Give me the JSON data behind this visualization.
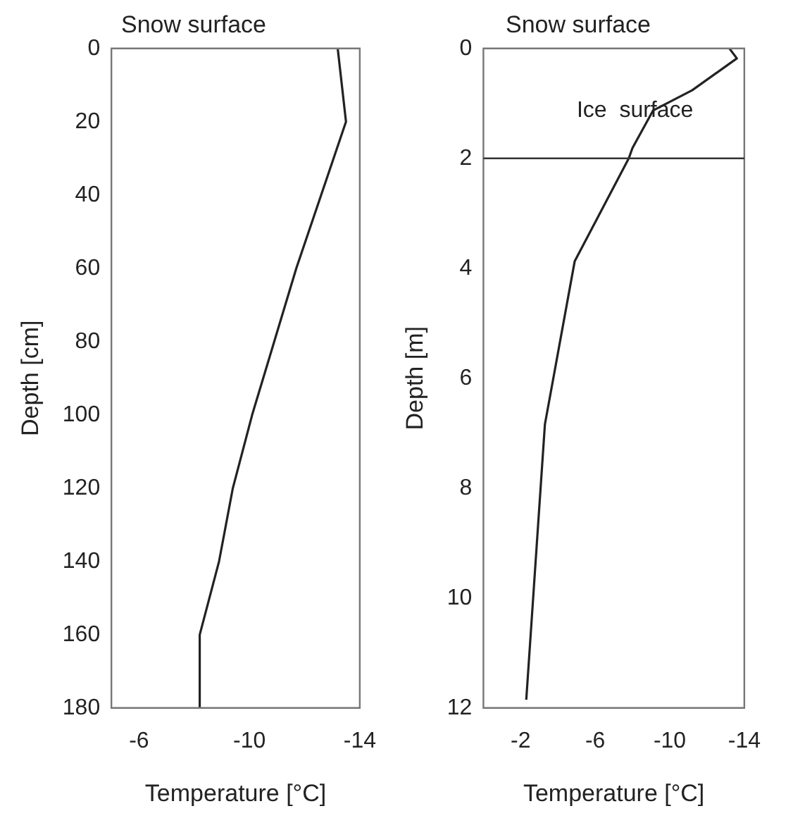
{
  "chart_data": [
    {
      "type": "line",
      "title": "Snow surface",
      "xlabel": "Temperature [°C]",
      "ylabel": "Depth [cm]",
      "xlim": [
        -5,
        -14
      ],
      "xticks": [
        -6,
        -10,
        -14
      ],
      "ylim": [
        180,
        0
      ],
      "yticks": [
        0,
        20,
        40,
        60,
        80,
        100,
        120,
        140,
        160,
        180
      ],
      "grid": false,
      "legend": false,
      "marker": "none",
      "line_style": "solid",
      "series": [
        {
          "color": "#222222",
          "x": [
            -13.2,
            -13.5,
            -12.6,
            -11.7,
            -10.9,
            -10.1,
            -9.4,
            -8.9,
            -8.2,
            -8.2
          ],
          "values": [
            0,
            20,
            40,
            60,
            80,
            100,
            120,
            140,
            160,
            180
          ]
        }
      ]
    },
    {
      "type": "line",
      "title": "Snow surface",
      "xlabel": "Temperature [°C]",
      "ylabel": "Depth [m]",
      "xlim": [
        0,
        -14
      ],
      "xticks": [
        -2,
        -6,
        -10,
        -14
      ],
      "ylim": [
        12,
        0
      ],
      "yticks": [
        0,
        2,
        4,
        6,
        8,
        10,
        12
      ],
      "grid": false,
      "legend": false,
      "marker": "none",
      "line_style": "solid",
      "ref_lines": [
        {
          "axis": "y",
          "value": 2,
          "label": "Ice  surface",
          "color": "#333333"
        }
      ],
      "series": [
        {
          "color": "#222222",
          "x": [
            -13.2,
            -13.6,
            -11.2,
            -9.1,
            -8.0,
            -7.8,
            -4.9,
            -3.3,
            -2.3
          ],
          "values": [
            0,
            0.18,
            0.76,
            1.13,
            1.81,
            2,
            3.87,
            6.84,
            11.85
          ]
        }
      ]
    }
  ]
}
